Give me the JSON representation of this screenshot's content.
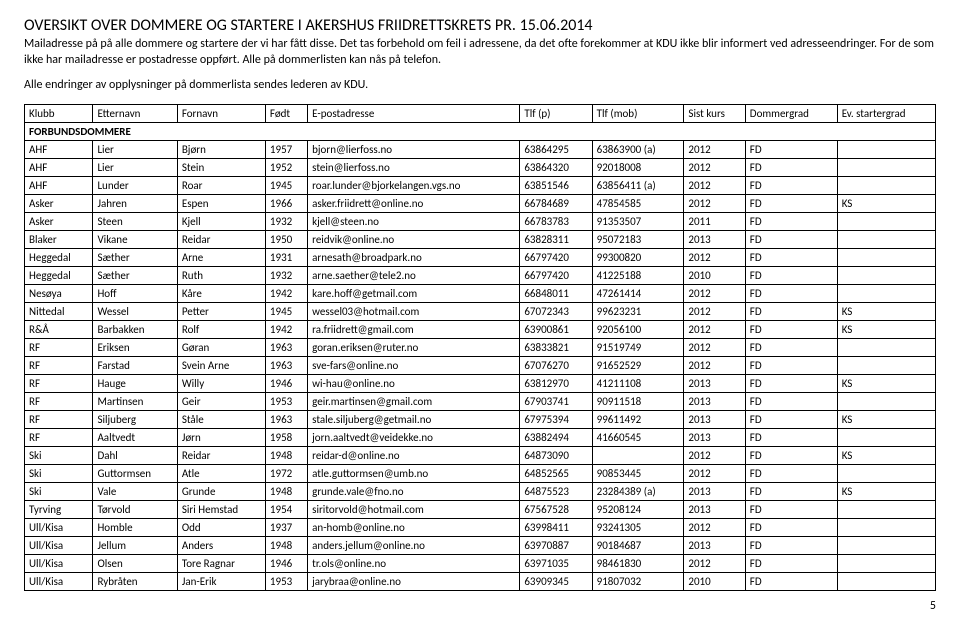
{
  "header": {
    "title": "OVERSIKT OVER DOMMERE OG STARTERE I AKERSHUS FRIIDRETTSKRETS PR. 15.06.2014",
    "intro1": "Mailadresse på på alle dommere og startere der vi har fått disse. Det tas forbehold om feil i adressene, da det ofte forekommer at KDU ikke blir informert ved adresseendringer. For de som ikke har mailadresse er postadresse oppført. Alle på dommerlisten kan nås på telefon.",
    "intro2": "Alle endringer av opplysninger på dommerlista sendes lederen av KDU."
  },
  "columns": [
    "Klubb",
    "Etternavn",
    "Fornavn",
    "Født",
    "E-postadresse",
    "Tlf (p)",
    "Tlf (mob)",
    "Sist kurs",
    "Dommergrad",
    "Ev. startergrad"
  ],
  "subheading": "FORBUNDSDOMMERE",
  "rows": [
    [
      "AHF",
      "Lier",
      "Bjørn",
      "1957",
      "bjorn@lierfoss.no",
      "63864295",
      "63863900 (a)",
      "2012",
      "FD",
      ""
    ],
    [
      "AHF",
      "Lier",
      "Stein",
      "1952",
      "stein@lierfoss.no",
      "63864320",
      "92018008",
      "2012",
      "FD",
      ""
    ],
    [
      "AHF",
      "Lunder",
      "Roar",
      "1945",
      "roar.lunder@bjorkelangen.vgs.no",
      "63851546",
      "63856411 (a)",
      "2012",
      "FD",
      ""
    ],
    [
      "Asker",
      "Jahren",
      "Espen",
      "1966",
      "asker.friidrett@online.no",
      "66784689",
      "47854585",
      "2012",
      "FD",
      "KS"
    ],
    [
      "Asker",
      "Steen",
      "Kjell",
      "1932",
      "kjell@steen.no",
      "66783783",
      "91353507",
      "2011",
      "FD",
      ""
    ],
    [
      "Blaker",
      "Vikane",
      "Reidar",
      "1950",
      "reidvik@online.no",
      "63828311",
      "95072183",
      "2013",
      "FD",
      ""
    ],
    [
      "Heggedal",
      "Sæther",
      "Arne",
      "1931",
      "arnesath@broadpark.no",
      "66797420",
      "99300820",
      "2012",
      "FD",
      ""
    ],
    [
      "Heggedal",
      "Sæther",
      "Ruth",
      "1932",
      "arne.saether@tele2.no",
      "66797420",
      "41225188",
      "2010",
      "FD",
      ""
    ],
    [
      "Nesøya",
      "Hoff",
      "Kåre",
      "1942",
      "kare.hoff@getmail.com",
      "66848011",
      "47261414",
      "2012",
      "FD",
      ""
    ],
    [
      "Nittedal",
      "Wessel",
      "Petter",
      "1945",
      "wessel03@hotmail.com",
      "67072343",
      "99623231",
      "2012",
      "FD",
      "KS"
    ],
    [
      "R&Å",
      "Barbakken",
      "Rolf",
      "1942",
      "ra.friidrett@gmail.com",
      "63900861",
      "92056100",
      "2012",
      "FD",
      "KS"
    ],
    [
      "RF",
      "Eriksen",
      "Gøran",
      "1963",
      "goran.eriksen@ruter.no",
      "63833821",
      "91519749",
      "2012",
      "FD",
      ""
    ],
    [
      "RF",
      "Farstad",
      "Svein Arne",
      "1963",
      "sve-fars@online.no",
      "67076270",
      "91652529",
      "2012",
      "FD",
      ""
    ],
    [
      "RF",
      "Hauge",
      "Willy",
      "1946",
      "wi-hau@online.no",
      "63812970",
      "41211108",
      "2013",
      "FD",
      "KS"
    ],
    [
      "RF",
      "Martinsen",
      "Geir",
      "1953",
      "geir.martinsen@gmail.com",
      "67903741",
      "90911518",
      "2013",
      "FD",
      ""
    ],
    [
      "RF",
      "Siljuberg",
      "Ståle",
      "1963",
      "stale.siljuberg@getmail.no",
      "67975394",
      "99611492",
      "2013",
      "FD",
      "KS"
    ],
    [
      "RF",
      "Aaltvedt",
      "Jørn",
      "1958",
      "jorn.aaltvedt@veidekke.no",
      "63882494",
      "41660545",
      "2013",
      "FD",
      ""
    ],
    [
      "Ski",
      "Dahl",
      "Reidar",
      "1948",
      "reidar-d@online.no",
      "64873090",
      "",
      "2012",
      "FD",
      "KS"
    ],
    [
      "Ski",
      "Guttormsen",
      "Atle",
      "1972",
      "atle.guttormsen@umb.no",
      "64852565",
      "90853445",
      "2012",
      "FD",
      ""
    ],
    [
      "Ski",
      "Vale",
      "Grunde",
      "1948",
      "grunde.vale@fno.no",
      "64875523",
      "23284389 (a)",
      "2013",
      "FD",
      "KS"
    ],
    [
      "Tyrving",
      "Tørvold",
      "Siri Hemstad",
      "1954",
      "siritorvold@hotmail.com",
      "67567528",
      "95208124",
      "2013",
      "FD",
      ""
    ],
    [
      "Ull/Kisa",
      "Homble",
      "Odd",
      "1937",
      "an-homb@online.no",
      "63998411",
      "93241305",
      "2012",
      "FD",
      ""
    ],
    [
      "Ull/Kisa",
      "Jellum",
      "Anders",
      "1948",
      "anders.jellum@online.no",
      "63970887",
      "90184687",
      "2013",
      "FD",
      ""
    ],
    [
      "Ull/Kisa",
      "Olsen",
      "Tore Ragnar",
      "1946",
      "tr.ols@online.no",
      "63971035",
      "98461830",
      "2012",
      "FD",
      ""
    ],
    [
      "Ull/Kisa",
      "Rybråten",
      "Jan-Erik",
      "1953",
      "jarybraa@online.no",
      "63909345",
      "91807032",
      "2010",
      "FD",
      ""
    ]
  ],
  "page_number": "5"
}
